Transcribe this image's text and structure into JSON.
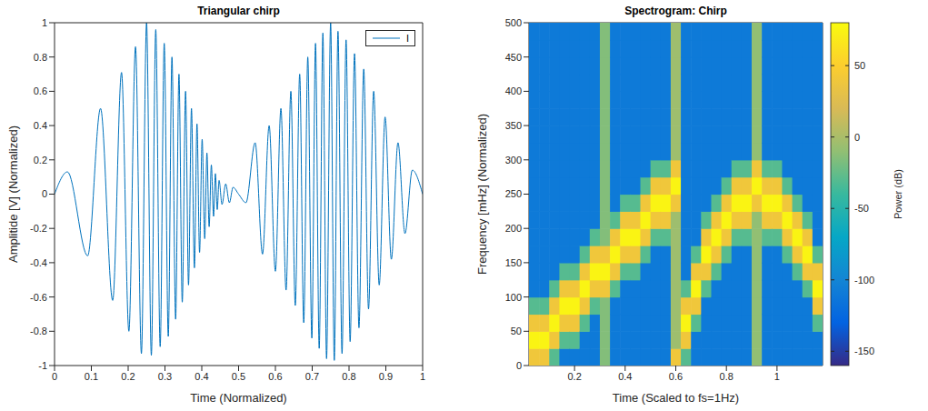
{
  "chart_data": [
    {
      "type": "line",
      "title": "Triangular chirp",
      "x_label": "Time (Normalized)",
      "y_label": "Amplitide [V] (Normalized)",
      "x": [
        0,
        0.035,
        0.09,
        0.125,
        0.158,
        0.182,
        0.202,
        0.22,
        0.236,
        0.25,
        0.263,
        0.275,
        0.287,
        0.298,
        0.309,
        0.319,
        0.329,
        0.338,
        0.347,
        0.356,
        0.364,
        0.372,
        0.38,
        0.387,
        0.394,
        0.401,
        0.408,
        0.414,
        0.42,
        0.426,
        0.432,
        0.437,
        0.442,
        0.447,
        0.455,
        0.465,
        0.475,
        0.485,
        0.5,
        0.52,
        0.545,
        0.565,
        0.583,
        0.6,
        0.615,
        0.629,
        0.642,
        0.654,
        0.666,
        0.677,
        0.688,
        0.699,
        0.709,
        0.719,
        0.729,
        0.739,
        0.75,
        0.76,
        0.77,
        0.781,
        0.792,
        0.803,
        0.815,
        0.827,
        0.84,
        0.853,
        0.867,
        0.882,
        0.898,
        0.915,
        0.933,
        0.952,
        0.972,
        1
      ],
      "series": [
        {
          "name": "I",
          "color": "#0072bd",
          "values": [
            0,
            0.13,
            -0.36,
            0.5,
            -0.62,
            0.71,
            -0.8,
            0.86,
            -0.93,
            1,
            -0.94,
            0.96,
            -0.89,
            0.88,
            -0.83,
            0.8,
            -0.73,
            0.7,
            -0.63,
            0.6,
            -0.53,
            0.5,
            -0.43,
            0.41,
            -0.34,
            0.32,
            -0.26,
            0.24,
            -0.19,
            0.17,
            -0.13,
            0.12,
            -0.09,
            0.08,
            -0.06,
            0.06,
            -0.05,
            0.04,
            0,
            -0.05,
            0.3,
            -0.35,
            0.4,
            -0.45,
            0.5,
            -0.56,
            0.6,
            -0.65,
            0.7,
            -0.75,
            0.8,
            -0.84,
            0.88,
            -0.9,
            0.94,
            -0.96,
            1,
            -0.97,
            0.95,
            -0.93,
            0.9,
            -0.86,
            0.82,
            -0.78,
            0.73,
            -0.67,
            0.6,
            -0.53,
            0.45,
            -0.38,
            0.3,
            -0.23,
            0.14,
            0
          ]
        }
      ],
      "xlim": [
        0,
        1
      ],
      "xticks": [
        0,
        0.1,
        0.2,
        0.3,
        0.4,
        0.5,
        0.6,
        0.7,
        0.8,
        0.9,
        1
      ],
      "ylim": [
        -1,
        1
      ],
      "yticks": [
        -1,
        -0.8,
        -0.6,
        -0.4,
        -0.2,
        0,
        0.2,
        0.4,
        0.6,
        0.8,
        1
      ],
      "legend": "upper right"
    },
    {
      "type": "heatmap",
      "title": "Spectrogram: Chirp",
      "x_label": "Time (Scaled to fs=1Hz)",
      "y_label": "Frequency [mHz] (Normalized)",
      "xlim": [
        0.02,
        1.18
      ],
      "xticks": [
        0.2,
        0.4,
        0.6,
        0.8,
        1
      ],
      "ylim": [
        0,
        500
      ],
      "yticks": [
        0,
        50,
        100,
        150,
        200,
        250,
        300,
        350,
        400,
        450,
        500
      ],
      "x": [
        0.04,
        0.08,
        0.12,
        0.16,
        0.2,
        0.24,
        0.28,
        0.32,
        0.36,
        0.4,
        0.44,
        0.48,
        0.52,
        0.56,
        0.6,
        0.64,
        0.68,
        0.72,
        0.76,
        0.8,
        0.84,
        0.88,
        0.92,
        0.96,
        1,
        1.04,
        1.08,
        1.12,
        1.16
      ],
      "y": [
        12.5,
        37.5,
        62.5,
        87.5,
        112.5,
        137.5,
        162.5,
        187.5,
        212.5,
        237.5,
        262.5,
        287.5,
        312.5,
        337.5,
        362.5,
        387.5,
        412.5,
        437.5,
        462.5,
        487.5
      ],
      "cells": [
        [
          40,
          75,
          40,
          -30,
          -110,
          -110,
          -110,
          -110,
          -110,
          -110,
          -110,
          -110,
          -110,
          -110,
          -110,
          -110,
          -110,
          -110,
          -110,
          -110
        ],
        [
          40,
          75,
          40,
          -30,
          -110,
          -110,
          -110,
          -110,
          -110,
          -110,
          -110,
          -110,
          -110,
          -110,
          -110,
          -110,
          -110,
          -110,
          -110,
          -110
        ],
        [
          -30,
          40,
          75,
          40,
          -30,
          -110,
          -110,
          -110,
          -110,
          -110,
          -110,
          -110,
          -110,
          -110,
          -110,
          -110,
          -110,
          -110,
          -110,
          -110
        ],
        [
          -110,
          -30,
          40,
          75,
          40,
          -30,
          -110,
          -110,
          -110,
          -110,
          -110,
          -110,
          -110,
          -110,
          -110,
          -110,
          -110,
          -110,
          -110,
          -110
        ],
        [
          -110,
          -30,
          40,
          75,
          40,
          -30,
          -110,
          -110,
          -110,
          -110,
          -110,
          -110,
          -110,
          -110,
          -110,
          -110,
          -110,
          -110,
          -110,
          -110
        ],
        [
          -110,
          -110,
          -30,
          40,
          75,
          40,
          -30,
          -110,
          -110,
          -110,
          -110,
          -110,
          -110,
          -110,
          -110,
          -110,
          -110,
          -110,
          -110,
          -110
        ],
        [
          -110,
          -110,
          -110,
          -30,
          40,
          75,
          40,
          -30,
          -110,
          -110,
          -110,
          -110,
          -110,
          -110,
          -110,
          -110,
          -110,
          -110,
          -110,
          -110
        ],
        [
          -15,
          -15,
          -15,
          -15,
          40,
          75,
          40,
          -15,
          -15,
          -15,
          -15,
          -15,
          -15,
          -15,
          -15,
          -15,
          -15,
          -15,
          -15,
          -15
        ],
        [
          -110,
          -110,
          -110,
          -110,
          -30,
          40,
          75,
          40,
          -30,
          -110,
          -110,
          -110,
          -110,
          -110,
          -110,
          -110,
          -110,
          -110,
          -110,
          -110
        ],
        [
          -110,
          -110,
          -110,
          -110,
          -110,
          -30,
          40,
          75,
          40,
          -30,
          -110,
          -110,
          -110,
          -110,
          -110,
          -110,
          -110,
          -110,
          -110,
          -110
        ],
        [
          -110,
          -110,
          -110,
          -110,
          -110,
          -30,
          40,
          75,
          40,
          -30,
          -110,
          -110,
          -110,
          -110,
          -110,
          -110,
          -110,
          -110,
          -110,
          -110
        ],
        [
          -110,
          -110,
          -110,
          -110,
          -110,
          -110,
          -30,
          40,
          75,
          40,
          -30,
          -110,
          -110,
          -110,
          -110,
          -110,
          -110,
          -110,
          -110,
          -110
        ],
        [
          -110,
          -110,
          -110,
          -110,
          -110,
          -110,
          -110,
          -30,
          40,
          75,
          40,
          -30,
          -110,
          -110,
          -110,
          -110,
          -110,
          -110,
          -110,
          -110
        ],
        [
          -110,
          -110,
          -110,
          -110,
          -110,
          -110,
          -110,
          -30,
          40,
          75,
          40,
          -30,
          -110,
          -110,
          -110,
          -110,
          -110,
          -110,
          -110,
          -110
        ],
        [
          40,
          -5,
          -5,
          -5,
          -5,
          -5,
          -5,
          -5,
          -5,
          40,
          75,
          40,
          -5,
          -5,
          -5,
          -5,
          -5,
          -5,
          -5,
          -5
        ],
        [
          -30,
          40,
          75,
          40,
          -30,
          -110,
          -110,
          -110,
          -110,
          -110,
          -110,
          -110,
          -110,
          -110,
          -110,
          -110,
          -110,
          -110,
          -110,
          -110
        ],
        [
          -110,
          -110,
          -30,
          40,
          75,
          40,
          -30,
          -110,
          -110,
          -110,
          -110,
          -110,
          -110,
          -110,
          -110,
          -110,
          -110,
          -110,
          -110,
          -110
        ],
        [
          -110,
          -110,
          -110,
          -110,
          -30,
          40,
          75,
          40,
          -30,
          -110,
          -110,
          -110,
          -110,
          -110,
          -110,
          -110,
          -110,
          -110,
          -110,
          -110
        ],
        [
          -110,
          -110,
          -110,
          -110,
          -110,
          -30,
          40,
          75,
          40,
          -30,
          -110,
          -110,
          -110,
          -110,
          -110,
          -110,
          -110,
          -110,
          -110,
          -110
        ],
        [
          -110,
          -110,
          -110,
          -110,
          -110,
          -110,
          -30,
          40,
          75,
          40,
          -30,
          -110,
          -110,
          -110,
          -110,
          -110,
          -110,
          -110,
          -110,
          -110
        ],
        [
          -110,
          -110,
          -110,
          -110,
          -110,
          -110,
          -110,
          -30,
          40,
          75,
          40,
          -30,
          -110,
          -110,
          -110,
          -110,
          -110,
          -110,
          -110,
          -110
        ],
        [
          -110,
          -110,
          -110,
          -110,
          -110,
          -110,
          -110,
          -30,
          40,
          75,
          40,
          -30,
          -110,
          -110,
          -110,
          -110,
          -110,
          -110,
          -110,
          -110
        ],
        [
          -10,
          -10,
          -10,
          -10,
          -10,
          -10,
          -10,
          -10,
          -10,
          40,
          75,
          40,
          -10,
          -10,
          -10,
          -10,
          -10,
          -10,
          -10,
          -10
        ],
        [
          -110,
          -110,
          -110,
          -110,
          -110,
          -110,
          -110,
          -30,
          40,
          75,
          40,
          -30,
          -110,
          -110,
          -110,
          -110,
          -110,
          -110,
          -110,
          -110
        ],
        [
          -110,
          -110,
          -110,
          -110,
          -110,
          -110,
          -110,
          -30,
          40,
          75,
          40,
          -30,
          -110,
          -110,
          -110,
          -110,
          -110,
          -110,
          -110,
          -110
        ],
        [
          -110,
          -110,
          -110,
          -110,
          -110,
          -110,
          -30,
          40,
          75,
          40,
          -30,
          -110,
          -110,
          -110,
          -110,
          -110,
          -110,
          -110,
          -110,
          -110
        ],
        [
          -110,
          -110,
          -110,
          -110,
          -110,
          -30,
          40,
          75,
          40,
          -30,
          -110,
          -110,
          -110,
          -110,
          -110,
          -110,
          -110,
          -110,
          -110,
          -110
        ],
        [
          -110,
          -110,
          -110,
          -110,
          -30,
          40,
          75,
          40,
          -30,
          -110,
          -110,
          -110,
          -110,
          -110,
          -110,
          -110,
          -110,
          -110,
          -110,
          -110
        ],
        [
          -110,
          -110,
          -30,
          40,
          75,
          40,
          -30,
          -110,
          -110,
          -110,
          -110,
          -110,
          -110,
          -110,
          -110,
          -110,
          -110,
          -110,
          -110,
          -110
        ]
      ],
      "colorbar": {
        "label": "Power (dB)",
        "range": [
          -160,
          80
        ],
        "ticks": [
          -150,
          -100,
          -50,
          0,
          50
        ]
      }
    }
  ]
}
